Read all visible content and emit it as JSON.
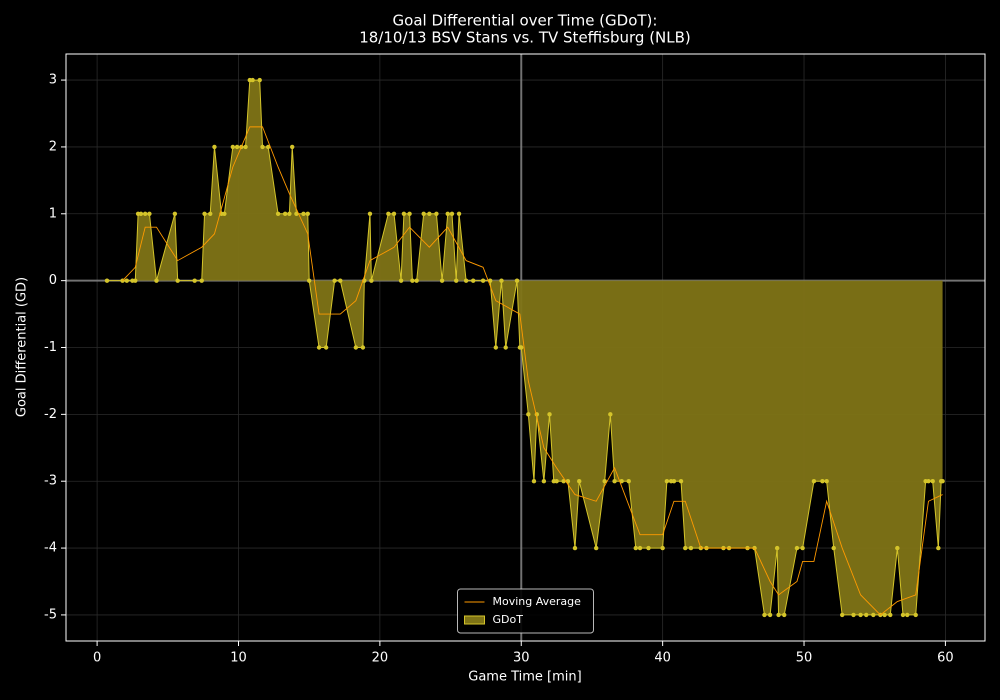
{
  "chart_data": {
    "type": "line",
    "title": "Goal Differential over Time (GDoT):",
    "subtitle": "18/10/13 BSV Stans  vs.  TV Steffisburg (NLB)",
    "xlabel": "Game Time [min]",
    "ylabel": "Goal Differential (GD)",
    "xlim": [
      -2.2,
      62.8
    ],
    "ylim": [
      -5.39,
      3.39
    ],
    "xticks": [
      0,
      10,
      20,
      30,
      40,
      50,
      60
    ],
    "yticks": [
      -5,
      -4,
      -3,
      -2,
      -1,
      0,
      1,
      2,
      3
    ],
    "grid": true,
    "legend": "lower center",
    "vline": 30,
    "hline": 0,
    "series": [
      {
        "name": "GDoT",
        "color": "#d4c42a",
        "fill": "#7f7416",
        "kind": "area",
        "x": [
          0.7,
          1.8,
          2.1,
          2.5,
          2.7,
          2.9,
          3.1,
          3.4,
          3.7,
          4.2,
          5.5,
          5.7,
          6.9,
          7.4,
          7.6,
          8.0,
          8.3,
          8.8,
          9.0,
          9.6,
          9.9,
          10.2,
          10.5,
          10.8,
          11.0,
          11.5,
          11.7,
          12.1,
          12.8,
          13.3,
          13.6,
          13.8,
          14.1,
          14.6,
          14.9,
          15.0,
          15.7,
          16.2,
          16.8,
          17.2,
          18.3,
          18.8,
          18.9,
          19.3,
          19.4,
          20.6,
          21.0,
          21.5,
          21.7,
          22.1,
          22.3,
          22.6,
          23.1,
          23.5,
          24.0,
          24.4,
          24.8,
          25.1,
          25.4,
          25.6,
          26.1,
          26.6,
          27.3,
          27.8,
          28.2,
          28.6,
          28.9,
          29.7,
          29.9,
          30.0,
          30.5,
          30.9,
          31.1,
          31.6,
          32.0,
          32.3,
          32.5,
          33.0,
          33.3,
          33.8,
          34.1,
          35.3,
          35.9,
          36.3,
          36.6,
          37.1,
          37.6,
          38.1,
          38.4,
          39.0,
          40.0,
          40.3,
          40.6,
          40.8,
          41.3,
          41.6,
          42.0,
          42.7,
          43.1,
          44.3,
          44.7,
          46.0,
          46.5,
          47.2,
          47.6,
          48.1,
          48.2,
          48.6,
          49.5,
          49.9,
          50.7,
          51.3,
          51.6,
          52.1,
          52.7,
          53.5,
          54.0,
          54.4,
          54.9,
          55.4,
          55.7,
          56.1,
          56.6,
          57.0,
          57.3,
          57.9,
          58.6,
          58.8,
          59.1,
          59.5,
          59.7,
          59.8
        ],
        "values": [
          0,
          0,
          0,
          0,
          0,
          1,
          1,
          1,
          1,
          0,
          1,
          0,
          0,
          0,
          1,
          1,
          2,
          1,
          1,
          2,
          2,
          2,
          2,
          3,
          3,
          3,
          2,
          2,
          1,
          1,
          1,
          2,
          1,
          1,
          1,
          0,
          -1,
          -1,
          0,
          0,
          -1,
          -1,
          0,
          1,
          0,
          1,
          1,
          0,
          1,
          1,
          0,
          0,
          1,
          1,
          1,
          0,
          1,
          1,
          0,
          1,
          0,
          0,
          0,
          0,
          -1,
          0,
          -1,
          0,
          -1,
          -1,
          -2,
          -3,
          -2,
          -3,
          -2,
          -3,
          -3,
          -3,
          -3,
          -4,
          -3,
          -4,
          -3,
          -2,
          -3,
          -3,
          -3,
          -4,
          -4,
          -4,
          -4,
          -3,
          -3,
          -3,
          -3,
          -4,
          -4,
          -4,
          -4,
          -4,
          -4,
          -4,
          -4,
          -5,
          -5,
          -4,
          -5,
          -5,
          -4,
          -4,
          -3,
          -3,
          -3,
          -4,
          -5,
          -5,
          -5,
          -5,
          -5,
          -5,
          -5,
          -5,
          -4,
          -5,
          -5,
          -5,
          -3,
          -3,
          -3,
          -4,
          -3,
          -3
        ]
      },
      {
        "name": "Moving Average",
        "color": "#ff9a00",
        "kind": "line",
        "x": [
          1.8,
          2.7,
          3.4,
          4.2,
          5.7,
          7.4,
          8.3,
          9.6,
          10.8,
          11.7,
          12.8,
          13.6,
          14.9,
          15.7,
          17.2,
          18.3,
          19.3,
          21.0,
          22.1,
          23.5,
          24.8,
          26.1,
          27.3,
          28.2,
          29.9,
          30.5,
          31.6,
          32.5,
          33.8,
          35.3,
          36.6,
          38.4,
          40.0,
          40.8,
          41.6,
          42.7,
          46.5,
          47.6,
          48.2,
          49.5,
          49.9,
          50.7,
          51.6,
          52.7,
          54.0,
          55.4,
          56.6,
          57.9,
          58.8,
          59.8
        ],
        "values": [
          0,
          0.2,
          0.8,
          0.8,
          0.3,
          0.5,
          0.7,
          1.7,
          2.3,
          2.3,
          1.7,
          1.3,
          0.7,
          -0.5,
          -0.5,
          -0.3,
          0.3,
          0.5,
          0.8,
          0.5,
          0.8,
          0.3,
          0.2,
          -0.3,
          -0.5,
          -1.5,
          -2.5,
          -2.8,
          -3.2,
          -3.3,
          -2.8,
          -3.8,
          -3.8,
          -3.3,
          -3.3,
          -4,
          -4,
          -4.5,
          -4.7,
          -4.5,
          -4.2,
          -4.2,
          -3.3,
          -4,
          -4.7,
          -5,
          -4.8,
          -4.7,
          -3.3,
          -3.2
        ]
      }
    ]
  }
}
